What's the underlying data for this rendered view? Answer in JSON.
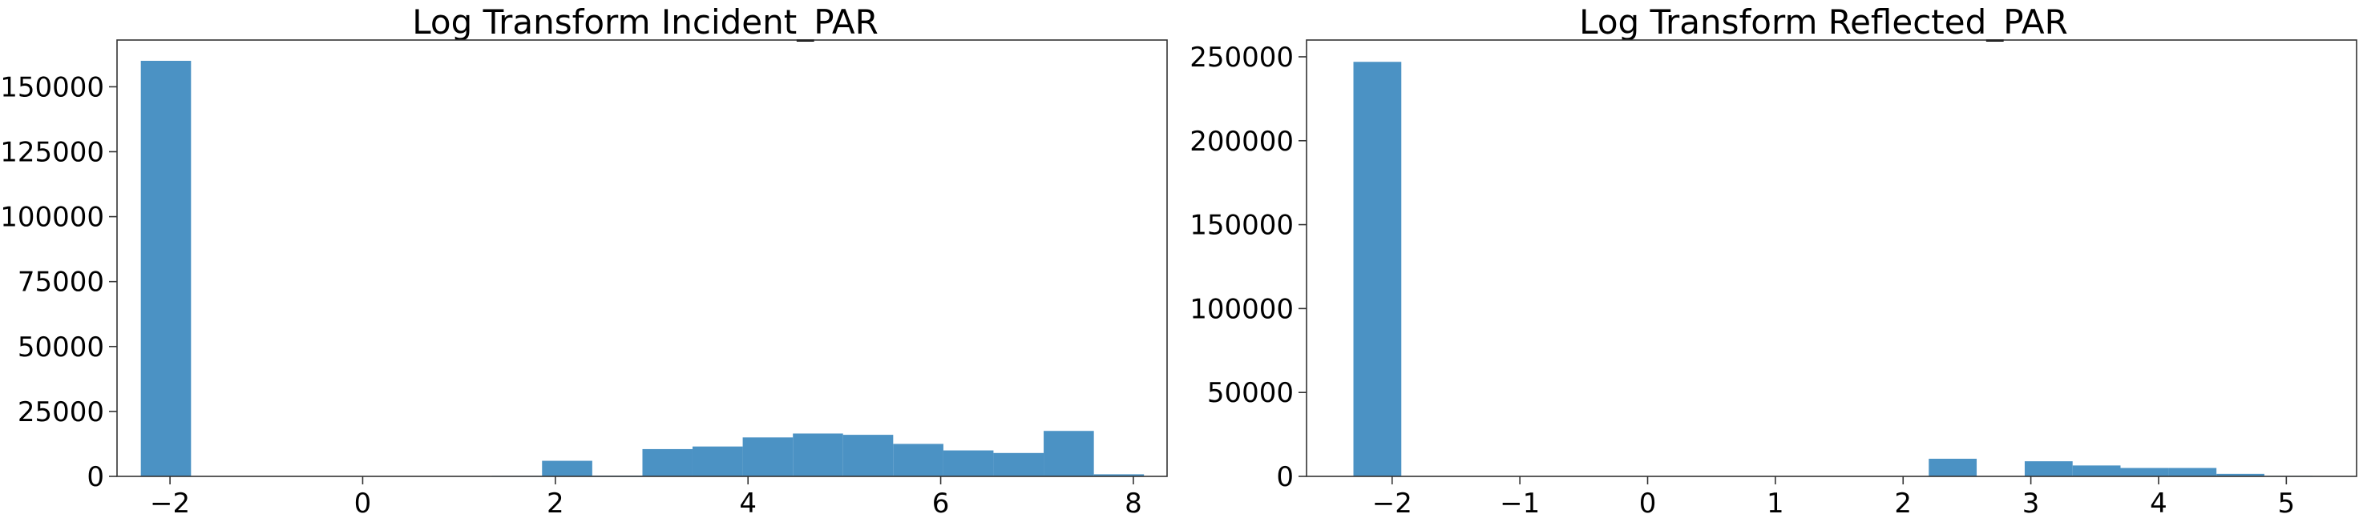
{
  "chart_data": [
    {
      "type": "histogram",
      "title": "Log Transform Incident_PAR",
      "xlabel": "",
      "ylabel": "",
      "xlim": [
        -2.55,
        8.35
      ],
      "ylim": [
        0,
        168000
      ],
      "xticks": [
        -2,
        0,
        2,
        4,
        6,
        8
      ],
      "yticks": [
        0,
        25000,
        50000,
        75000,
        100000,
        125000,
        150000
      ],
      "color": "#4b92c4",
      "bins": [
        {
          "x0": -2.303,
          "x1": -1.782,
          "value": 160000
        },
        {
          "x0": -1.782,
          "x1": -1.262,
          "value": 0
        },
        {
          "x0": -1.262,
          "x1": -0.741,
          "value": 0
        },
        {
          "x0": -0.741,
          "x1": -0.22,
          "value": 0
        },
        {
          "x0": -0.22,
          "x1": 0.3,
          "value": 0
        },
        {
          "x0": 0.3,
          "x1": 0.821,
          "value": 0
        },
        {
          "x0": 0.821,
          "x1": 1.342,
          "value": 0
        },
        {
          "x0": 1.342,
          "x1": 1.862,
          "value": 200
        },
        {
          "x0": 1.862,
          "x1": 2.383,
          "value": 6000
        },
        {
          "x0": 2.383,
          "x1": 2.904,
          "value": 300
        },
        {
          "x0": 2.904,
          "x1": 3.424,
          "value": 10500
        },
        {
          "x0": 3.424,
          "x1": 3.945,
          "value": 11500
        },
        {
          "x0": 3.945,
          "x1": 4.466,
          "value": 15000
        },
        {
          "x0": 4.466,
          "x1": 4.986,
          "value": 16500
        },
        {
          "x0": 4.986,
          "x1": 5.507,
          "value": 16000
        },
        {
          "x0": 5.507,
          "x1": 6.028,
          "value": 12500
        },
        {
          "x0": 6.028,
          "x1": 6.548,
          "value": 10000
        },
        {
          "x0": 6.548,
          "x1": 7.069,
          "value": 9000
        },
        {
          "x0": 7.069,
          "x1": 7.59,
          "value": 17500
        },
        {
          "x0": 7.59,
          "x1": 8.11,
          "value": 800
        }
      ]
    },
    {
      "type": "histogram",
      "title": "Log Transform Reflected_PAR",
      "xlabel": "",
      "ylabel": "",
      "xlim": [
        -2.67,
        5.55
      ],
      "ylim": [
        0,
        260000
      ],
      "xticks": [
        -2,
        -1,
        0,
        1,
        2,
        3,
        4,
        5
      ],
      "yticks": [
        0,
        50000,
        100000,
        150000,
        200000,
        250000
      ],
      "color": "#4b92c4",
      "bins": [
        {
          "x0": -2.303,
          "x1": -1.928,
          "value": 247000
        },
        {
          "x0": -1.928,
          "x1": -1.552,
          "value": 0
        },
        {
          "x0": -1.552,
          "x1": -1.177,
          "value": 0
        },
        {
          "x0": -1.177,
          "x1": -0.802,
          "value": 0
        },
        {
          "x0": -0.802,
          "x1": -0.426,
          "value": 0
        },
        {
          "x0": -0.426,
          "x1": -0.051,
          "value": 0
        },
        {
          "x0": -0.051,
          "x1": 0.324,
          "value": 0
        },
        {
          "x0": 0.324,
          "x1": 0.7,
          "value": 0
        },
        {
          "x0": 0.7,
          "x1": 1.075,
          "value": 0
        },
        {
          "x0": 1.075,
          "x1": 1.45,
          "value": 0
        },
        {
          "x0": 1.45,
          "x1": 1.826,
          "value": 0
        },
        {
          "x0": 1.826,
          "x1": 2.201,
          "value": 0
        },
        {
          "x0": 2.201,
          "x1": 2.576,
          "value": 10500
        },
        {
          "x0": 2.576,
          "x1": 2.952,
          "value": 0
        },
        {
          "x0": 2.952,
          "x1": 3.327,
          "value": 9000
        },
        {
          "x0": 3.327,
          "x1": 3.702,
          "value": 6500
        },
        {
          "x0": 3.702,
          "x1": 4.078,
          "value": 5000
        },
        {
          "x0": 4.078,
          "x1": 4.453,
          "value": 5000
        },
        {
          "x0": 4.453,
          "x1": 4.828,
          "value": 1500
        },
        {
          "x0": 4.828,
          "x1": 5.204,
          "value": 300
        }
      ]
    }
  ]
}
